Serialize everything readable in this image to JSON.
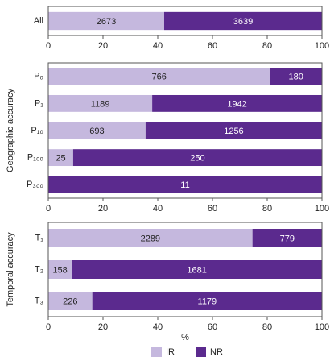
{
  "chart_data": [
    {
      "type": "bar",
      "orientation": "horizontal",
      "stacked": "percent",
      "categories": [
        "All"
      ],
      "series": [
        {
          "color": "#c5b8de",
          "values": [
            2673
          ]
        },
        {
          "color": "#5b2a8e",
          "values": [
            3639
          ]
        }
      ],
      "xlim": [
        0,
        100
      ],
      "xticks": [
        0,
        20,
        40,
        60,
        80,
        100
      ]
    },
    {
      "type": "bar",
      "orientation": "horizontal",
      "stacked": "percent",
      "ylabel": "Geographic accuracy",
      "categories": [
        "P₀",
        "P₁",
        "P₁₀",
        "P₁₀₀",
        "P₃₀₀"
      ],
      "series": [
        {
          "color": "#c5b8de",
          "values": [
            766,
            1189,
            693,
            25,
            0
          ]
        },
        {
          "color": "#5b2a8e",
          "values": [
            180,
            1942,
            1256,
            250,
            11
          ]
        }
      ],
      "xlim": [
        0,
        100
      ],
      "xticks": [
        0,
        20,
        40,
        60,
        80,
        100
      ]
    },
    {
      "type": "bar",
      "orientation": "horizontal",
      "stacked": "percent",
      "ylabel": "Temporal accuracy",
      "xlabel": "%",
      "categories": [
        "T₁",
        "T₂",
        "T₃"
      ],
      "series": [
        {
          "name": "IR",
          "color": "#c5b8de",
          "values": [
            2289,
            158,
            226
          ]
        },
        {
          "name": "NR",
          "color": "#5b2a8e",
          "values": [
            779,
            1681,
            1179
          ]
        }
      ],
      "xlim": [
        0,
        100
      ],
      "xticks": [
        0,
        20,
        40,
        60,
        80,
        100
      ],
      "legend": "bottom"
    }
  ]
}
